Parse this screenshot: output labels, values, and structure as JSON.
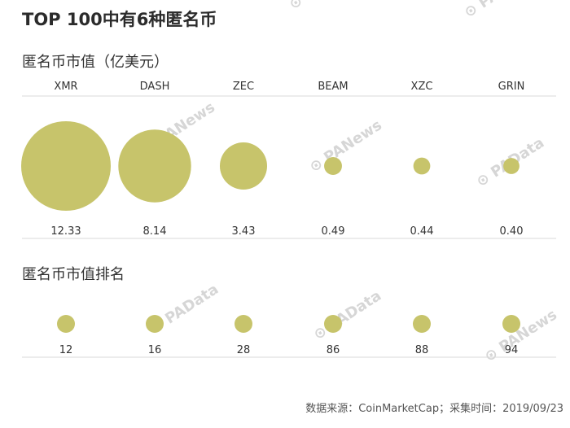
{
  "header": {
    "title": "TOP 100中有6种匿名币"
  },
  "footer": {
    "source": "数据来源：CoinMarketCap；采集时间：2019/09/23"
  },
  "watermarks": [
    "PANews",
    "PAData"
  ],
  "chart_data": [
    {
      "type": "bubble",
      "title": "匿名币市值（亿美元）",
      "categories": [
        "XMR",
        "DASH",
        "ZEC",
        "BEAM",
        "XZC",
        "GRIN"
      ],
      "values": [
        12.33,
        8.14,
        3.43,
        0.49,
        0.44,
        0.4
      ],
      "labels": [
        "12.33",
        "8.14",
        "3.43",
        "0.49",
        "0.44",
        "0.40"
      ],
      "color": "#c7c46b"
    },
    {
      "type": "bubble",
      "title": "匿名币市值排名",
      "categories": [
        "XMR",
        "DASH",
        "ZEC",
        "BEAM",
        "XZC",
        "GRIN"
      ],
      "values": [
        12,
        16,
        28,
        86,
        88,
        94
      ],
      "labels": [
        "12",
        "16",
        "28",
        "86",
        "88",
        "94"
      ],
      "color": "#c7c46b"
    }
  ]
}
